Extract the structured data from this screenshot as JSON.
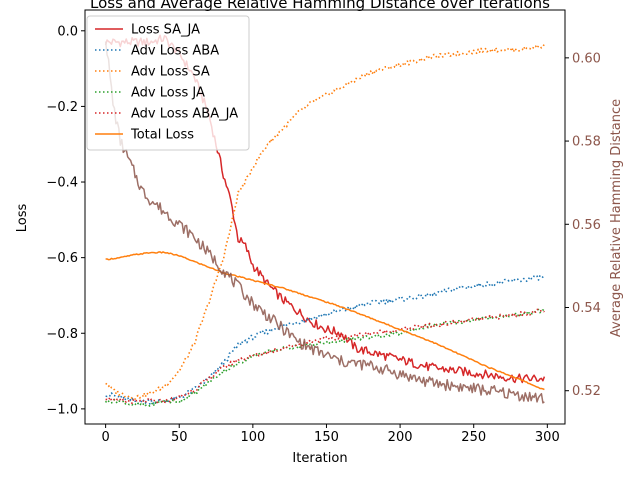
{
  "chart_data": {
    "type": "line",
    "title": "Loss and Average Relative Hamming Distance over Iterations",
    "xlabel": "Iteration",
    "ylabel": "Loss",
    "ylabel_right": "Average Relative Hamming Distance",
    "xlim": [
      -14,
      312
    ],
    "ylim": [
      -1.04,
      0.055
    ],
    "ylim_right": [
      0.512,
      0.6115
    ],
    "x_ticks": [
      0,
      50,
      100,
      150,
      200,
      250,
      300
    ],
    "y_ticks": [
      0.0,
      -0.2,
      -0.4,
      -0.6,
      -0.8,
      -1.0
    ],
    "y_tick_labels": [
      "0.0",
      "−0.2",
      "−0.4",
      "−0.6",
      "−0.8",
      "−1.0"
    ],
    "y_right_ticks": [
      0.52,
      0.54,
      0.56,
      0.58,
      0.6
    ],
    "y_right_tick_labels": [
      "0.52",
      "0.54",
      "0.56",
      "0.58",
      "0.60"
    ],
    "grid": false,
    "legend_position": "top-left",
    "right_axis_color": "#8c564b",
    "series": [
      {
        "name": "Loss SA_JA",
        "axis": "left",
        "style": "solid",
        "color": "#d62728",
        "x": [
          0,
          10,
          20,
          30,
          40,
          50,
          60,
          70,
          75,
          80,
          85,
          90,
          95,
          100,
          110,
          120,
          130,
          140,
          150,
          160,
          170,
          180,
          200,
          220,
          240,
          260,
          280,
          298
        ],
        "y": [
          -0.03,
          -0.03,
          -0.03,
          -0.03,
          -0.02,
          -0.06,
          -0.12,
          -0.22,
          -0.3,
          -0.38,
          -0.45,
          -0.55,
          -0.57,
          -0.62,
          -0.67,
          -0.71,
          -0.74,
          -0.77,
          -0.79,
          -0.8,
          -0.84,
          -0.85,
          -0.87,
          -0.89,
          -0.9,
          -0.91,
          -0.92,
          -0.92
        ]
      },
      {
        "name": "Adv Loss ABA",
        "axis": "left",
        "style": "dotted",
        "color": "#1f77b4",
        "x": [
          0,
          10,
          20,
          30,
          40,
          50,
          60,
          70,
          80,
          90,
          100,
          120,
          140,
          160,
          180,
          200,
          220,
          240,
          260,
          280,
          298
        ],
        "y": [
          -0.96,
          -0.97,
          -0.98,
          -0.98,
          -0.98,
          -0.97,
          -0.95,
          -0.92,
          -0.88,
          -0.83,
          -0.81,
          -0.78,
          -0.76,
          -0.74,
          -0.72,
          -0.71,
          -0.7,
          -0.68,
          -0.67,
          -0.66,
          -0.65
        ]
      },
      {
        "name": "Adv Loss SA",
        "axis": "left",
        "style": "dotted",
        "color": "#ff7f0e",
        "x": [
          0,
          5,
          10,
          20,
          30,
          40,
          50,
          60,
          70,
          80,
          85,
          90,
          95,
          100,
          110,
          120,
          130,
          140,
          150,
          160,
          170,
          180,
          200,
          220,
          240,
          260,
          280,
          298
        ],
        "y": [
          -0.93,
          -0.95,
          -0.96,
          -0.97,
          -0.96,
          -0.94,
          -0.9,
          -0.83,
          -0.72,
          -0.6,
          -0.52,
          -0.43,
          -0.4,
          -0.36,
          -0.3,
          -0.26,
          -0.22,
          -0.19,
          -0.17,
          -0.15,
          -0.13,
          -0.11,
          -0.09,
          -0.07,
          -0.06,
          -0.05,
          -0.05,
          -0.04
        ]
      },
      {
        "name": "Adv Loss JA",
        "axis": "left",
        "style": "dotted",
        "color": "#2ca02c",
        "x": [
          0,
          10,
          20,
          30,
          40,
          50,
          60,
          70,
          80,
          90,
          100,
          120,
          140,
          160,
          180,
          200,
          220,
          240,
          260,
          280,
          298
        ],
        "y": [
          -0.98,
          -0.98,
          -0.99,
          -0.99,
          -0.98,
          -0.98,
          -0.96,
          -0.93,
          -0.9,
          -0.88,
          -0.86,
          -0.84,
          -0.83,
          -0.82,
          -0.81,
          -0.8,
          -0.78,
          -0.77,
          -0.76,
          -0.75,
          -0.74
        ]
      },
      {
        "name": "Adv Loss ABA_JA",
        "axis": "left",
        "style": "dotted",
        "color": "#d62728",
        "x": [
          0,
          10,
          20,
          30,
          40,
          50,
          60,
          70,
          80,
          90,
          100,
          120,
          140,
          160,
          180,
          200,
          220,
          240,
          260,
          280,
          298
        ],
        "y": [
          -0.97,
          -0.98,
          -0.98,
          -0.98,
          -0.98,
          -0.97,
          -0.95,
          -0.92,
          -0.89,
          -0.87,
          -0.86,
          -0.84,
          -0.82,
          -0.81,
          -0.8,
          -0.79,
          -0.78,
          -0.77,
          -0.76,
          -0.75,
          -0.74
        ]
      },
      {
        "name": "Total Loss",
        "axis": "left",
        "style": "solid",
        "color": "#ff7f0e",
        "x": [
          0,
          10,
          20,
          30,
          40,
          50,
          60,
          70,
          80,
          90,
          100,
          120,
          140,
          160,
          180,
          200,
          220,
          240,
          260,
          280,
          298
        ],
        "y": [
          -0.605,
          -0.6,
          -0.592,
          -0.587,
          -0.586,
          -0.595,
          -0.61,
          -0.625,
          -0.64,
          -0.65,
          -0.66,
          -0.68,
          -0.705,
          -0.73,
          -0.76,
          -0.79,
          -0.82,
          -0.855,
          -0.89,
          -0.92,
          -0.95
        ]
      },
      {
        "name": "",
        "axis": "right",
        "style": "solid",
        "color": "#8c564b",
        "x": [
          0,
          5,
          10,
          15,
          20,
          25,
          30,
          40,
          50,
          60,
          70,
          80,
          90,
          100,
          110,
          120,
          130,
          140,
          160,
          180,
          200,
          220,
          240,
          260,
          280,
          298
        ],
        "y": [
          0.605,
          0.589,
          0.58,
          0.576,
          0.572,
          0.568,
          0.566,
          0.563,
          0.56,
          0.557,
          0.553,
          0.549,
          0.545,
          0.541,
          0.538,
          0.535,
          0.532,
          0.53,
          0.527,
          0.526,
          0.524,
          0.522,
          0.521,
          0.52,
          0.519,
          0.518
        ]
      }
    ]
  }
}
